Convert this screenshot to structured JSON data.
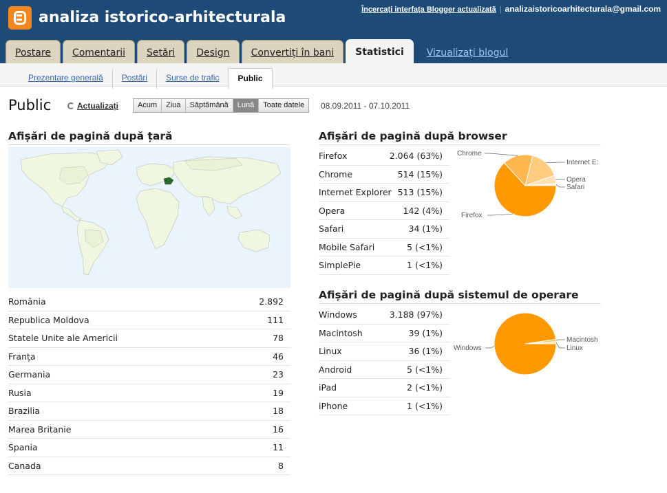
{
  "header": {
    "blog_title": "analiza istorico-arhitecturala",
    "try_link": "Încercați interfața Blogger actualizată",
    "separator": "|",
    "email": "analizaistoricoarhitecturala@gmail.com"
  },
  "tabs": [
    {
      "label": "Postare"
    },
    {
      "label": "Comentarii"
    },
    {
      "label": "Setări"
    },
    {
      "label": "Design"
    },
    {
      "label": "Convertiți în bani"
    },
    {
      "label": "Statistici"
    }
  ],
  "view_blog_link": "Vizualizați blogul",
  "subnav": [
    {
      "label": "Prezentare generală"
    },
    {
      "label": "Postări"
    },
    {
      "label": "Surse de trafic"
    },
    {
      "label": "Public"
    }
  ],
  "page": {
    "title": "Public",
    "refresh_label": "Actualizați",
    "range_buttons": [
      "Acum",
      "Ziua",
      "Săptămână",
      "Lună",
      "Toate datele"
    ],
    "selected_range": "Lună",
    "date_range": "08.09.2011 - 07.10.2011"
  },
  "country": {
    "title": "Afișări de pagină după țară",
    "rows": [
      {
        "name": "România",
        "value": "2.892"
      },
      {
        "name": "Republica Moldova",
        "value": "111"
      },
      {
        "name": "Statele Unite ale Americii",
        "value": "78"
      },
      {
        "name": "Franța",
        "value": "46"
      },
      {
        "name": "Germania",
        "value": "23"
      },
      {
        "name": "Rusia",
        "value": "19"
      },
      {
        "name": "Brazilia",
        "value": "18"
      },
      {
        "name": "Marea Britanie",
        "value": "16"
      },
      {
        "name": "Spania",
        "value": "11"
      },
      {
        "name": "Canada",
        "value": "8"
      }
    ]
  },
  "browser": {
    "title": "Afișări de pagină după browser",
    "rows": [
      {
        "name": "Firefox",
        "value": "2.064 (63%)"
      },
      {
        "name": "Chrome",
        "value": "514 (15%)"
      },
      {
        "name": "Internet Explorer",
        "value": "513 (15%)"
      },
      {
        "name": "Opera",
        "value": "142 (4%)"
      },
      {
        "name": "Safari",
        "value": "34 (1%)"
      },
      {
        "name": "Mobile Safari",
        "value": "5 (<1%)"
      },
      {
        "name": "SimplePie",
        "value": "1 (<1%)"
      }
    ]
  },
  "os": {
    "title": "Afișări de pagină după sistemul de operare",
    "rows": [
      {
        "name": "Windows",
        "value": "3.188 (97%)"
      },
      {
        "name": "Macintosh",
        "value": "39 (1%)"
      },
      {
        "name": "Linux",
        "value": "36 (1%)"
      },
      {
        "name": "Android",
        "value": "5 (<1%)"
      },
      {
        "name": "iPad",
        "value": "2 (<1%)"
      },
      {
        "name": "iPhone",
        "value": "1 (<1%)"
      }
    ]
  },
  "chart_data": [
    {
      "type": "pie",
      "labels": [
        "Firefox",
        "Chrome",
        "Internet E:",
        "Opera",
        "Safari"
      ],
      "values": [
        2064,
        514,
        513,
        142,
        34
      ],
      "colors": [
        "#ff9900",
        "#ffb84d",
        "#ffcc80",
        "#ffe0b3",
        "#fff0d9"
      ]
    },
    {
      "type": "pie",
      "labels": [
        "Windows",
        "Macintosh",
        "Linux"
      ],
      "values": [
        3188,
        39,
        36
      ],
      "colors": [
        "#ff9900",
        "#ffc266",
        "#ffe0b3"
      ]
    }
  ]
}
